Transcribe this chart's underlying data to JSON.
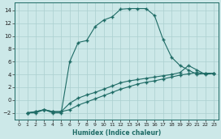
{
  "xlabel": "Humidex (Indice chaleur)",
  "bg_color": "#cce8e8",
  "grid_color": "#aacfcf",
  "line_color": "#1e6b65",
  "marker": "+",
  "xlim": [
    -0.5,
    23.5
  ],
  "ylim": [
    -3,
    15.2
  ],
  "xticks": [
    0,
    1,
    2,
    3,
    4,
    5,
    6,
    7,
    8,
    9,
    10,
    11,
    12,
    13,
    14,
    15,
    16,
    17,
    18,
    19,
    20,
    21,
    22,
    23
  ],
  "yticks": [
    -2,
    0,
    2,
    4,
    6,
    8,
    10,
    12,
    14
  ],
  "curve1_x": [
    1,
    2,
    3,
    4,
    5,
    6,
    7,
    8,
    9,
    10,
    11,
    12,
    13,
    14,
    15,
    16,
    17,
    18,
    19,
    20,
    21,
    22,
    23
  ],
  "curve1_y": [
    -2,
    -2,
    -1.5,
    -2,
    -2,
    6.0,
    9.0,
    9.3,
    11.5,
    12.5,
    13.0,
    14.2,
    14.3,
    14.3,
    14.3,
    13.2,
    9.5,
    6.7,
    5.4,
    4.7,
    4.0,
    4.2,
    4.2
  ],
  "curve2_x": [
    1,
    2,
    3,
    4,
    5,
    6,
    7,
    8,
    9,
    10,
    11,
    12,
    13,
    14,
    15,
    16,
    17,
    18,
    19,
    20,
    21,
    22,
    23
  ],
  "curve2_y": [
    -2,
    -1.8,
    -1.5,
    -1.8,
    -1.8,
    -0.5,
    0.3,
    0.8,
    1.2,
    1.7,
    2.2,
    2.7,
    3.0,
    3.2,
    3.4,
    3.6,
    3.8,
    4.0,
    4.3,
    5.4,
    4.7,
    4.0,
    4.2
  ],
  "curve3_x": [
    1,
    2,
    3,
    4,
    5,
    6,
    7,
    8,
    9,
    10,
    11,
    12,
    13,
    14,
    15,
    16,
    17,
    18,
    19,
    20,
    21,
    22,
    23
  ],
  "curve3_y": [
    -2,
    -1.8,
    -1.5,
    -1.8,
    -1.8,
    -1.5,
    -0.8,
    -0.3,
    0.2,
    0.7,
    1.2,
    1.7,
    2.1,
    2.5,
    2.8,
    3.0,
    3.3,
    3.6,
    3.9,
    4.1,
    4.3,
    4.1,
    4.2
  ]
}
